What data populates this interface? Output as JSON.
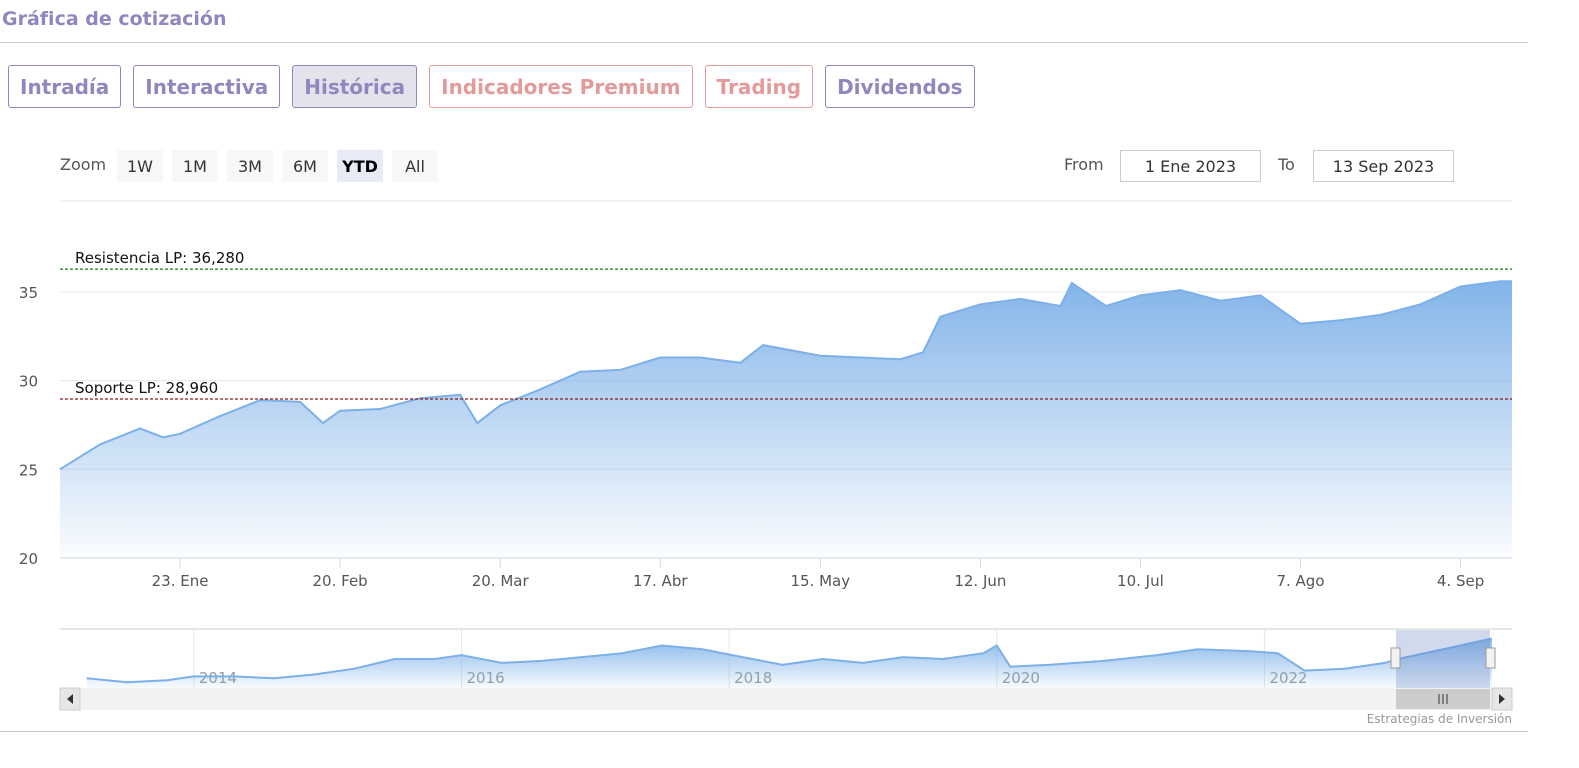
{
  "header": {
    "title": "Gráfica de cotización"
  },
  "tabs": [
    "Intradía",
    "Interactiva",
    "Histórica",
    "Indicadores Premium",
    "Trading",
    "Dividendos"
  ],
  "range_selector": {
    "label": "Zoom",
    "buttons": [
      "1W",
      "1M",
      "3M",
      "6M",
      "YTD",
      "All"
    ]
  },
  "date_inputs": {
    "from_label": "From",
    "from": "1 Ene 2023",
    "to_label": "To",
    "to": "13 Sep 2023"
  },
  "footer": {
    "credit": "Estrategias de Inversión"
  },
  "chart_data": {
    "type": "area",
    "color": "#7cb0e8",
    "grid": true,
    "x": [
      "2023-01-02",
      "2023-01-04",
      "2023-01-09",
      "2023-01-16",
      "2023-01-20",
      "2023-01-23",
      "2023-01-30",
      "2023-02-06",
      "2023-02-13",
      "2023-02-17",
      "2023-02-20",
      "2023-02-27",
      "2023-03-06",
      "2023-03-13",
      "2023-03-16",
      "2023-03-20",
      "2023-03-27",
      "2023-04-03",
      "2023-04-10",
      "2023-04-17",
      "2023-04-24",
      "2023-05-01",
      "2023-05-05",
      "2023-05-15",
      "2023-05-22",
      "2023-05-29",
      "2023-06-02",
      "2023-06-05",
      "2023-06-12",
      "2023-06-19",
      "2023-06-26",
      "2023-06-28",
      "2023-07-04",
      "2023-07-10",
      "2023-07-17",
      "2023-07-24",
      "2023-07-31",
      "2023-08-07",
      "2023-08-14",
      "2023-08-21",
      "2023-08-28",
      "2023-09-04",
      "2023-09-11",
      "2023-09-13"
    ],
    "values": [
      25.0,
      25.4,
      26.4,
      27.3,
      26.8,
      27.0,
      28.0,
      28.9,
      28.8,
      27.6,
      28.3,
      28.4,
      29.0,
      29.2,
      27.6,
      28.6,
      29.5,
      30.5,
      30.6,
      31.3,
      31.3,
      31.0,
      32.0,
      31.4,
      31.3,
      31.2,
      31.6,
      33.6,
      34.3,
      34.6,
      34.2,
      35.5,
      34.2,
      34.8,
      35.1,
      34.5,
      34.8,
      33.2,
      33.4,
      33.7,
      34.3,
      35.3,
      35.6,
      35.6
    ],
    "xlim": [
      "2023-01-02",
      "2023-09-13"
    ],
    "xticks": [
      {
        "value": "2023-01-23",
        "label": "23. Ene"
      },
      {
        "value": "2023-02-20",
        "label": "20. Feb"
      },
      {
        "value": "2023-03-20",
        "label": "20. Mar"
      },
      {
        "value": "2023-04-17",
        "label": "17. Abr"
      },
      {
        "value": "2023-05-15",
        "label": "15. May"
      },
      {
        "value": "2023-06-12",
        "label": "12. Jun"
      },
      {
        "value": "2023-07-10",
        "label": "10. Jul"
      },
      {
        "value": "2023-08-07",
        "label": "7. Ago"
      },
      {
        "value": "2023-09-04",
        "label": "4. Sep"
      }
    ],
    "ylim": [
      20,
      39.5
    ],
    "yticks": [
      20,
      25,
      30,
      35
    ],
    "plot_lines": [
      {
        "label": "Resistencia LP: 36,280",
        "value": 36.28,
        "color": "#1a7a1a"
      },
      {
        "label": "Soporte LP: 28,960",
        "value": 28.96,
        "color": "#8b1a1a"
      }
    ],
    "navigator": {
      "x": [
        2013.2,
        2013.5,
        2013.8,
        2014.0,
        2014.3,
        2014.6,
        2014.9,
        2015.2,
        2015.5,
        2015.8,
        2016.0,
        2016.3,
        2016.6,
        2016.9,
        2017.2,
        2017.5,
        2017.8,
        2018.1,
        2018.4,
        2018.7,
        2019.0,
        2019.3,
        2019.6,
        2019.9,
        2020.0,
        2020.1,
        2020.4,
        2020.8,
        2021.2,
        2021.5,
        2021.9,
        2022.1,
        2022.3,
        2022.6,
        2022.9,
        2023.0,
        2023.4,
        2023.7
      ],
      "values": [
        15,
        13,
        14,
        16,
        16,
        15,
        17,
        20,
        25,
        25,
        27,
        23,
        24,
        26,
        28,
        32,
        30,
        26,
        22,
        25,
        23,
        26,
        25,
        28,
        32,
        21,
        22,
        24,
        27,
        30,
        29,
        28,
        19,
        20,
        23,
        25,
        31,
        35.6
      ],
      "xlim": [
        2013,
        2023.85
      ],
      "ylim": [
        10,
        40
      ],
      "xticks": [
        2014,
        2016,
        2018,
        2020,
        2022
      ]
    }
  }
}
